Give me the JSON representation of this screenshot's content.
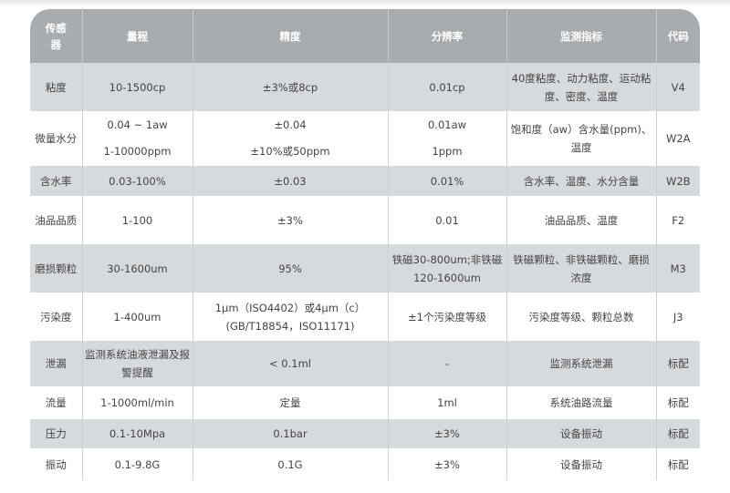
{
  "headers": [
    "传感器",
    "量程",
    "精度",
    "分辨率",
    "监测指标",
    "代码"
  ],
  "rows": [
    {
      "sensor": "粘度",
      "range": "10-1500cp",
      "accuracy": "±3%或8cp",
      "resolution": "0.01cp",
      "metrics": "40度粘度、动力粘度、运动粘度、密度、温度",
      "code": "V4"
    },
    {
      "sensor": "微量水分",
      "range": "0.04 ~ 1aw",
      "range2": "1-10000ppm",
      "accuracy": "±0.04",
      "accuracy2": "±10%或50ppm",
      "resolution": "0.01aw",
      "resolution2": "1ppm",
      "metrics": "饱和度（aw）含水量(ppm)、温度",
      "code": "W2A"
    },
    {
      "sensor": "含水率",
      "range": "0.03-100%",
      "accuracy": "±0.03",
      "resolution": "0.01%",
      "metrics": "含水率、温度、水分含量",
      "code": "W2B"
    },
    {
      "sensor": "油品品质",
      "range": "1-100",
      "accuracy": "±3%",
      "resolution": "0.01",
      "metrics": "油品品质、温度",
      "code": "F2"
    },
    {
      "sensor": "磨损颗粒",
      "range": "30-1600um",
      "accuracy": "95%",
      "resolution": "铁磁30-800um;非铁磁120-1600um",
      "metrics": "铁磁颗粒、非铁磁颗粒、磨损浓度",
      "code": "M3"
    },
    {
      "sensor": "污染度",
      "range": "1-400um",
      "accuracy": "1μm（ISO4402）或4μm（c）(GB/T18854，ISO11171)",
      "resolution": "±1个污染度等级",
      "metrics": "污染度等级、颗粒总数",
      "code": "J3"
    },
    {
      "sensor": "泄漏",
      "range": "监测系统油液泄漏及报警提醒",
      "accuracy": "< 0.1ml",
      "resolution": "-",
      "metrics": "监测系统泄漏",
      "code": "标配"
    },
    {
      "sensor": "流量",
      "range": "1-1000ml/min",
      "accuracy": "定量",
      "resolution": "1ml",
      "metrics": "系统油路流量",
      "code": "标配"
    },
    {
      "sensor": "压力",
      "range": "0.1-10Mpa",
      "accuracy": "0.1bar",
      "resolution": "±3%",
      "metrics": "设备振动",
      "code": "标配"
    },
    {
      "sensor": "振动",
      "range": "0.1-9.8G",
      "accuracy": "0.1G",
      "resolution": "±3%",
      "metrics": "设备振动",
      "code": "标配"
    }
  ]
}
